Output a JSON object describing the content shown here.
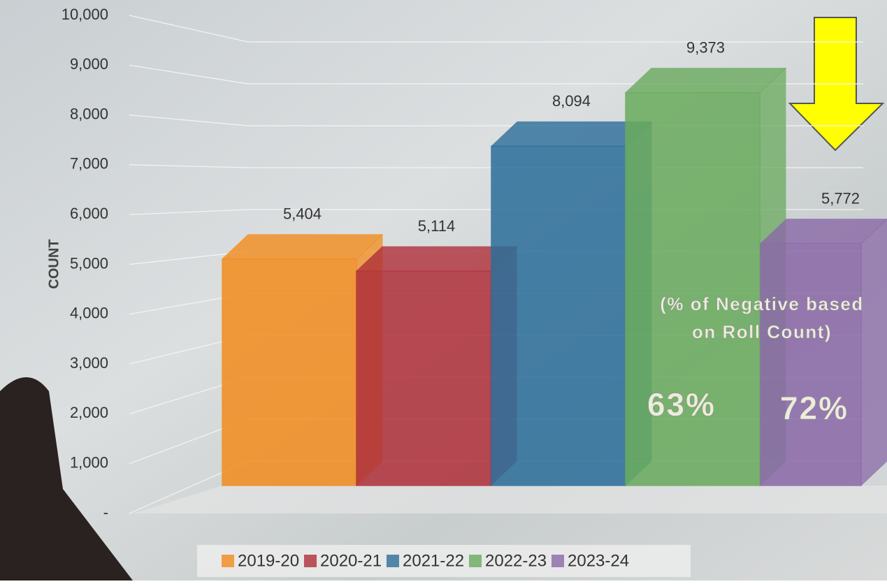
{
  "chart_data": {
    "type": "bar",
    "y_label": "COUNT",
    "categories": [
      null
    ],
    "series": [
      {
        "name": "2019-20",
        "color": "#f28c1e",
        "values": [
          5404
        ],
        "value_labels": [
          "5,404"
        ]
      },
      {
        "name": "2020-21",
        "color": "#b0303a",
        "values": [
          5114
        ],
        "value_labels": [
          "5,114"
        ]
      },
      {
        "name": "2021-22",
        "color": "#2c6e9a",
        "values": [
          8094
        ],
        "value_labels": [
          "8,094"
        ]
      },
      {
        "name": "2022-23",
        "color": "#6aab5e",
        "values": [
          9373
        ],
        "value_labels": [
          "9,373"
        ]
      },
      {
        "name": "2023-24",
        "color": "#8b6aa8",
        "values": [
          5772
        ],
        "value_labels": [
          "5,772"
        ]
      }
    ],
    "ylim": [
      0,
      10000
    ],
    "yticks": [
      {
        "value": 0,
        "label": "-"
      },
      {
        "value": 1000,
        "label": "1,000"
      },
      {
        "value": 2000,
        "label": "2,000"
      },
      {
        "value": 3000,
        "label": "3,000"
      },
      {
        "value": 4000,
        "label": "4,000"
      },
      {
        "value": 5000,
        "label": "5,000"
      },
      {
        "value": 6000,
        "label": "6,000"
      },
      {
        "value": 7000,
        "label": "7,000"
      },
      {
        "value": 8000,
        "label": "8,000"
      },
      {
        "value": 9000,
        "label": "9,000"
      },
      {
        "value": 10000,
        "label": "10,000"
      }
    ],
    "grid": true,
    "legend": "bottom",
    "annotations": [
      "(% of Negative based",
      "on Roll Count)",
      "63%",
      "72%"
    ]
  }
}
